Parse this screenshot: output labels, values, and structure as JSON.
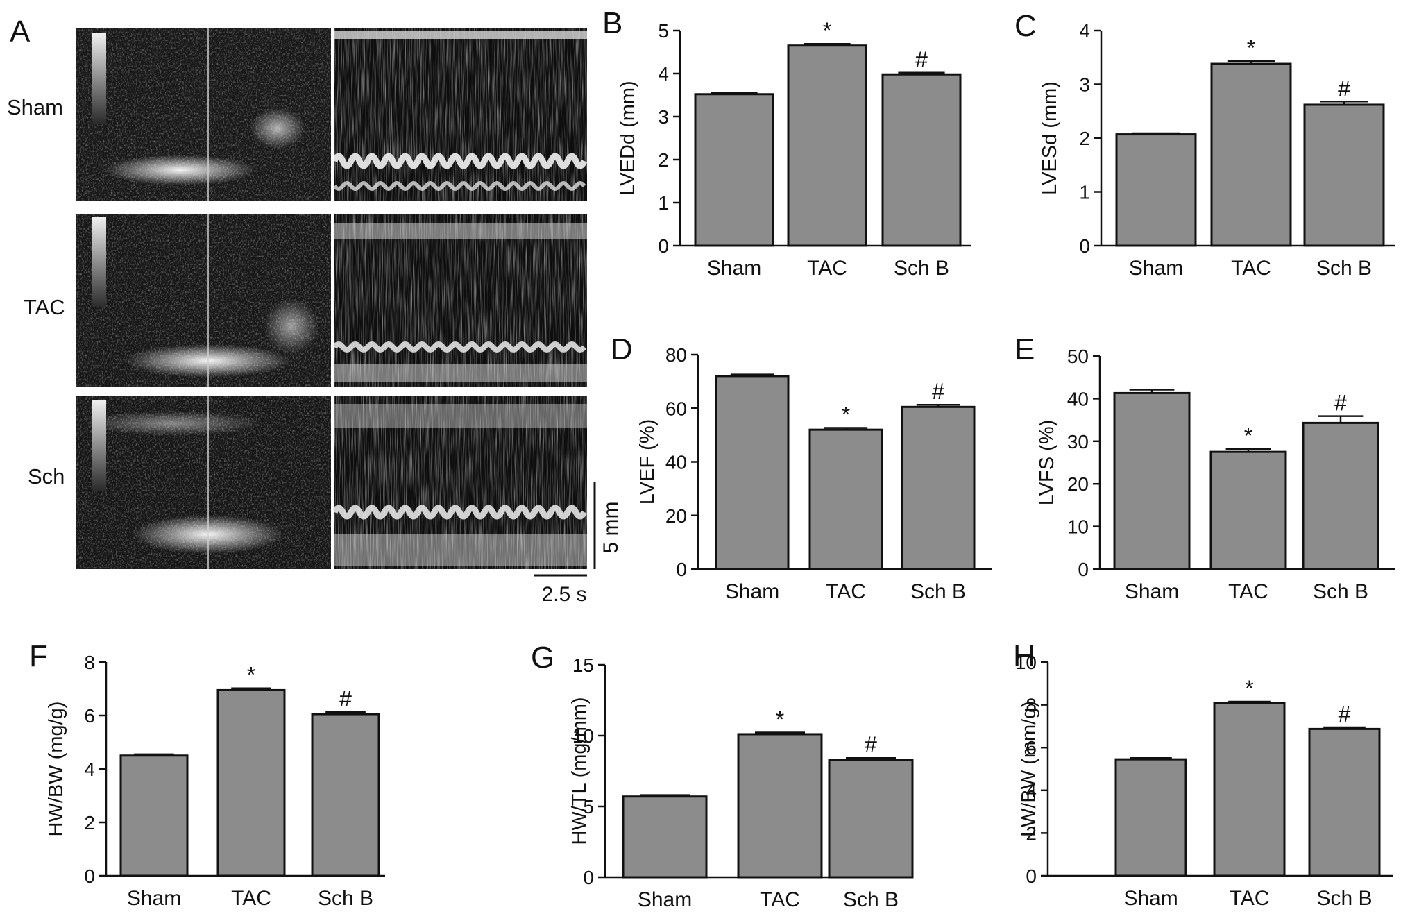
{
  "panel_a": {
    "label": "A",
    "rows": [
      "Sham",
      "TAC",
      "Sch"
    ],
    "scale_y": "5 mm",
    "scale_x": "2.5 s"
  },
  "chart_data": [
    {
      "id": "B",
      "type": "bar",
      "label": "B",
      "ylabel": "LVEDd (mm)",
      "categories": [
        "Sham",
        "TAC",
        "Sch B"
      ],
      "values": [
        3.52,
        4.65,
        3.98
      ],
      "errors": [
        0.03,
        0.04,
        0.04
      ],
      "ylim": [
        0,
        5
      ],
      "yticks": [
        0,
        1,
        2,
        3,
        4,
        5
      ],
      "annotations": [
        "",
        "*",
        "#"
      ],
      "grid": false
    },
    {
      "id": "C",
      "type": "bar",
      "label": "C",
      "ylabel": "LVESd (mm)",
      "categories": [
        "Sham",
        "TAC",
        "Sch B"
      ],
      "values": [
        2.07,
        3.38,
        2.62
      ],
      "errors": [
        0.02,
        0.05,
        0.06
      ],
      "ylim": [
        0,
        4
      ],
      "yticks": [
        0,
        1,
        2,
        3,
        4
      ],
      "annotations": [
        "",
        "*",
        "#"
      ],
      "grid": false
    },
    {
      "id": "D",
      "type": "bar",
      "label": "D",
      "ylabel": "LVEF (%)",
      "categories": [
        "Sham",
        "TAC",
        "Sch B"
      ],
      "values": [
        72,
        52,
        60.5
      ],
      "errors": [
        0.6,
        0.7,
        0.8
      ],
      "ylim": [
        0,
        80
      ],
      "yticks": [
        0,
        20,
        40,
        60,
        80
      ],
      "annotations": [
        "",
        "*",
        "#"
      ],
      "grid": false
    },
    {
      "id": "E",
      "type": "bar",
      "label": "E",
      "ylabel": "LVFS (%)",
      "categories": [
        "Sham",
        "TAC",
        "Sch B"
      ],
      "values": [
        41.3,
        27.5,
        34.3
      ],
      "errors": [
        0.8,
        0.7,
        1.6
      ],
      "ylim": [
        0,
        50
      ],
      "yticks": [
        0,
        10,
        20,
        30,
        40,
        50
      ],
      "annotations": [
        "",
        "*",
        "#"
      ],
      "grid": false
    },
    {
      "id": "F",
      "type": "bar",
      "label": "F",
      "ylabel": "HW/BW (mg/g)",
      "categories": [
        "Sham",
        "TAC",
        "Sch B"
      ],
      "values": [
        4.5,
        6.95,
        6.05
      ],
      "errors": [
        0.05,
        0.07,
        0.08
      ],
      "ylim": [
        0,
        8
      ],
      "yticks": [
        0,
        2,
        4,
        6,
        8
      ],
      "annotations": [
        "",
        "*",
        "#"
      ],
      "grid": false
    },
    {
      "id": "G",
      "type": "bar",
      "label": "G",
      "ylabel": "HW/TL (mg/mm)",
      "categories": [
        "Sham",
        "TAC",
        "Sch B"
      ],
      "values": [
        5.7,
        10.1,
        8.3
      ],
      "errors": [
        0.1,
        0.12,
        0.12
      ],
      "ylim": [
        0,
        15
      ],
      "yticks": [
        0,
        5,
        10,
        15
      ],
      "annotations": [
        "",
        "*",
        "#"
      ],
      "grid": false
    },
    {
      "id": "H",
      "type": "bar",
      "label": "H",
      "ylabel": "LW/BW (mm/g)",
      "categories": [
        "Sham",
        "TAC",
        "Sch B"
      ],
      "values": [
        5.45,
        8.07,
        6.87
      ],
      "errors": [
        0.06,
        0.08,
        0.08
      ],
      "ylim": [
        0,
        10
      ],
      "yticks": [
        0,
        2,
        4,
        6,
        8,
        10
      ],
      "annotations": [
        "",
        "*",
        "#"
      ],
      "grid": false
    }
  ]
}
